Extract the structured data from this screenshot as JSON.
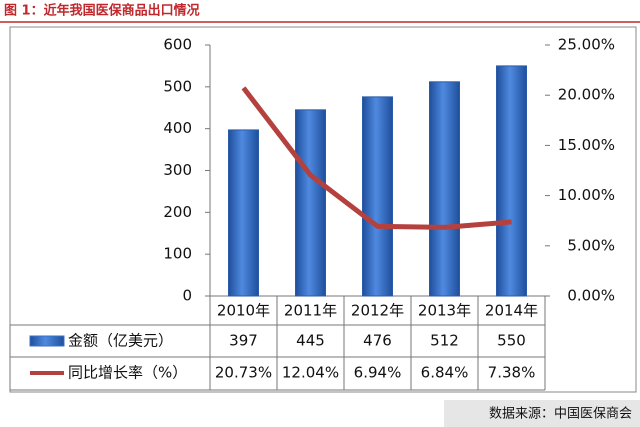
{
  "title": "图 1：近年我国医保商品出口情况",
  "source": "数据来源：中国医保商会",
  "chart_data": {
    "type": "bar",
    "categories": [
      "2010年",
      "2011年",
      "2012年",
      "2013年",
      "2014年"
    ],
    "series": [
      {
        "name": "金额（亿美元）",
        "type": "bar",
        "color": "#3a6fc4",
        "values": [
          397,
          445,
          476,
          512,
          550
        ]
      },
      {
        "name": "同比增长率（%）",
        "type": "line",
        "axis": "y2",
        "color": "#b5413f",
        "values": [
          20.73,
          12.04,
          6.94,
          6.84,
          7.38
        ],
        "value_labels": [
          "20.73%",
          "12.04%",
          "6.94%",
          "6.84%",
          "7.38%"
        ]
      }
    ],
    "ylim": [
      0,
      600
    ],
    "yticks": [
      0,
      100,
      200,
      300,
      400,
      500,
      600
    ],
    "y2lim": [
      0,
      25
    ],
    "y2ticks": [
      {
        "value": 0,
        "label": "0.00%"
      },
      {
        "value": 5,
        "label": "5.00%"
      },
      {
        "value": 10,
        "label": "10.00%"
      },
      {
        "value": 15,
        "label": "15.00%"
      },
      {
        "value": 20,
        "label": "20.00%"
      },
      {
        "value": 25,
        "label": "25.00%"
      }
    ]
  }
}
